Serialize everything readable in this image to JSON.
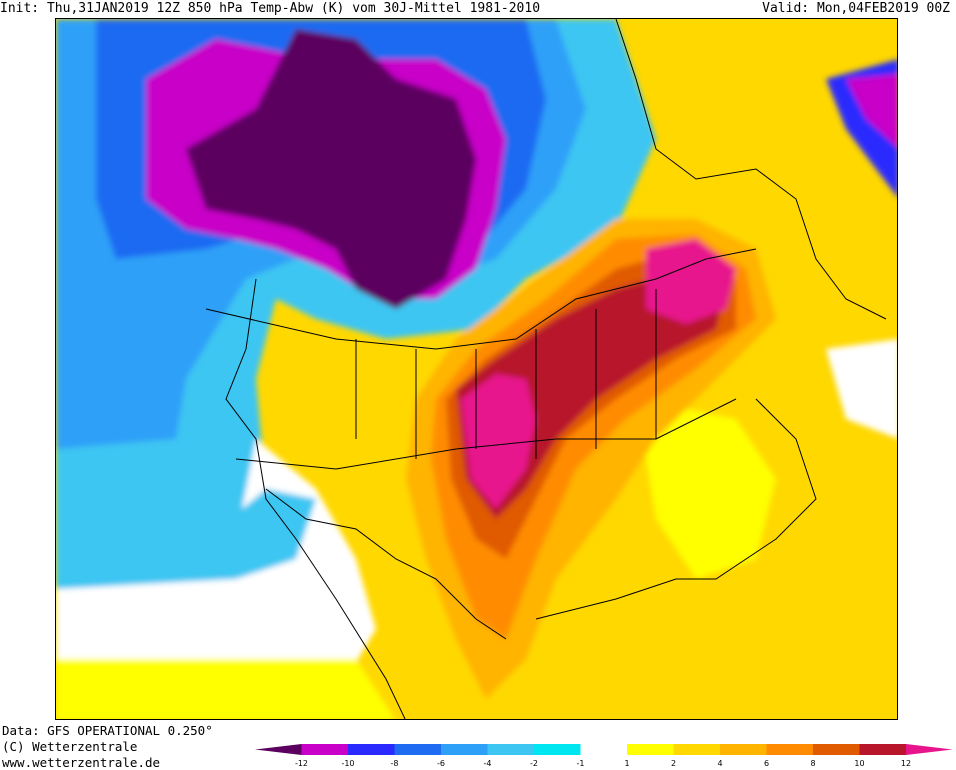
{
  "header": {
    "init_label": "Init: Thu,31JAN2019 12Z 850 hPa Temp-Abw (K) vom 30J-Mittel 1981-2010",
    "valid_label": "Valid: Mon,04FEB2019 00Z"
  },
  "footer": {
    "data_source": "Data: GFS OPERATIONAL 0.250°",
    "copyright": "(C) Wetterzentrale",
    "website": "www.wetterzentrale.de"
  },
  "legend": {
    "ticks": [
      "-12",
      "-10",
      "-8",
      "-6",
      "-4",
      "-2",
      "-1",
      "1",
      "2",
      "4",
      "6",
      "8",
      "10",
      "12"
    ],
    "colors": [
      "#5c0060",
      "#c800c8",
      "#2a2aff",
      "#1f6bf2",
      "#2fa0f8",
      "#3dc6f2",
      "#00e6f0",
      "#ffffff",
      "#ffff00",
      "#ffd800",
      "#ffb400",
      "#ff8c00",
      "#e05a00",
      "#b8162a",
      "#e8148c"
    ]
  },
  "map": {
    "field": "850 hPa temperature anomaly (K)",
    "region": "North America"
  }
}
